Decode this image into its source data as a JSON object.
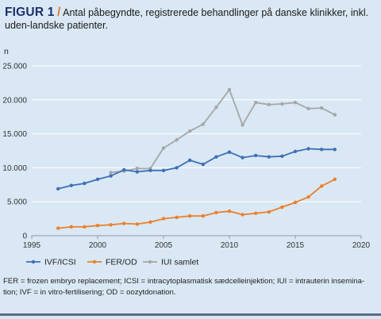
{
  "header": {
    "figure_label": "FIGUR 1",
    "separator": "/",
    "title": "Antal påbegyndte, registrerede behandlinger på danske klinikker, inkl. uden-landske patienter."
  },
  "caption": "FER = frozen embryo replacement; ICSI = intracytoplasmatisk sædcelleinjektion; IUI = intrauterin insemina-tion; IVF = in vitro-fertilisering; OD = oozytdonation.",
  "colors": {
    "background": "#d9e8f4",
    "ivf": "#3c6fb6",
    "fer": "#ec7f2c",
    "iui": "#a6a6a6",
    "axis": "#8a99ad"
  },
  "chart_data": {
    "type": "line",
    "ylabel": "n",
    "xlim": [
      1995,
      2020
    ],
    "ylim": [
      0,
      25000
    ],
    "xticks": [
      1995,
      2000,
      2005,
      2010,
      2015,
      2020
    ],
    "xtick_labels": [
      "1995",
      "2000",
      "2005",
      "2010",
      "2015",
      "2020"
    ],
    "yticks": [
      0,
      5000,
      10000,
      15000,
      20000,
      25000
    ],
    "ytick_labels": [
      "0",
      "5.000",
      "10.000",
      "15.000",
      "20.000",
      "25.000"
    ],
    "grid": "horizontal",
    "legend_position": "bottom",
    "series": [
      {
        "name": "IVF/ICSI",
        "color": "#3c6fb6",
        "x": [
          1997,
          1998,
          1999,
          2000,
          2001,
          2002,
          2003,
          2004,
          2005,
          2006,
          2007,
          2008,
          2009,
          2010,
          2011,
          2012,
          2013,
          2014,
          2015,
          2016,
          2017,
          2018
        ],
        "y": [
          6900,
          7400,
          7700,
          8300,
          8800,
          9700,
          9400,
          9600,
          9600,
          10000,
          11100,
          10500,
          11600,
          12300,
          11500,
          11800,
          11600,
          11700,
          12400,
          12800,
          12700,
          12700
        ]
      },
      {
        "name": "FER/OD",
        "color": "#ec7f2c",
        "x": [
          1997,
          1998,
          1999,
          2000,
          2001,
          2002,
          2003,
          2004,
          2005,
          2006,
          2007,
          2008,
          2009,
          2010,
          2011,
          2012,
          2013,
          2014,
          2015,
          2016,
          2017,
          2018
        ],
        "y": [
          1100,
          1300,
          1300,
          1500,
          1600,
          1800,
          1700,
          2000,
          2500,
          2700,
          2900,
          2900,
          3400,
          3600,
          3100,
          3300,
          3500,
          4200,
          4900,
          5700,
          7300,
          8300
        ]
      },
      {
        "name": "IUI samlet",
        "color": "#a6a6a6",
        "x": [
          2001,
          2002,
          2003,
          2004,
          2005,
          2006,
          2007,
          2008,
          2009,
          2010,
          2011,
          2012,
          2013,
          2014,
          2015,
          2016,
          2017,
          2018
        ],
        "y": [
          9300,
          9500,
          9900,
          9900,
          12900,
          14100,
          15400,
          16400,
          18900,
          21500,
          16300,
          19600,
          19300,
          19400,
          19600,
          18700,
          18800,
          17800
        ]
      }
    ]
  }
}
